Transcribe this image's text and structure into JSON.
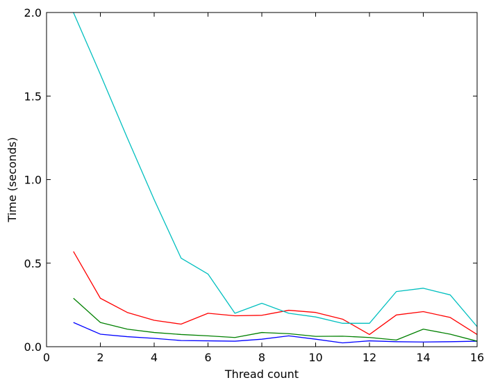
{
  "chart_data": {
    "type": "line",
    "xlabel": "Thread count",
    "ylabel": "Time (seconds)",
    "xlim": [
      0,
      16
    ],
    "ylim": [
      0.0,
      2.0
    ],
    "xticks": [
      0,
      2,
      4,
      6,
      8,
      10,
      12,
      14,
      16
    ],
    "xtick_labels": [
      "0",
      "2",
      "4",
      "6",
      "8",
      "10",
      "12",
      "14",
      "16"
    ],
    "yticks": [
      0.0,
      0.5,
      1.0,
      1.5,
      2.0
    ],
    "ytick_labels": [
      "0.0",
      "0.5",
      "1.0",
      "1.5",
      "2.0"
    ],
    "grid": false,
    "x": [
      1,
      2,
      3,
      4,
      5,
      6,
      7,
      8,
      9,
      10,
      11,
      12,
      13,
      14,
      15,
      16
    ],
    "series": [
      {
        "color": "#0000ff",
        "values": [
          0.145,
          0.075,
          0.06,
          0.05,
          0.037,
          0.035,
          0.033,
          0.045,
          0.065,
          0.045,
          0.023,
          0.035,
          0.03,
          0.028,
          0.03,
          0.033
        ]
      },
      {
        "color": "#008000",
        "values": [
          0.29,
          0.145,
          0.105,
          0.085,
          0.073,
          0.065,
          0.055,
          0.085,
          0.078,
          0.062,
          0.063,
          0.055,
          0.04,
          0.105,
          0.075,
          0.033
        ]
      },
      {
        "color": "#ff0000",
        "values": [
          0.57,
          0.29,
          0.205,
          0.158,
          0.135,
          0.2,
          0.185,
          0.188,
          0.218,
          0.205,
          0.165,
          0.073,
          0.19,
          0.21,
          0.175,
          0.073
        ]
      },
      {
        "color": "#00bfbf",
        "values": [
          2.0,
          1.63,
          1.25,
          0.88,
          0.53,
          0.435,
          0.2,
          0.26,
          0.2,
          0.178,
          0.14,
          0.14,
          0.33,
          0.35,
          0.31,
          0.12
        ]
      }
    ]
  }
}
